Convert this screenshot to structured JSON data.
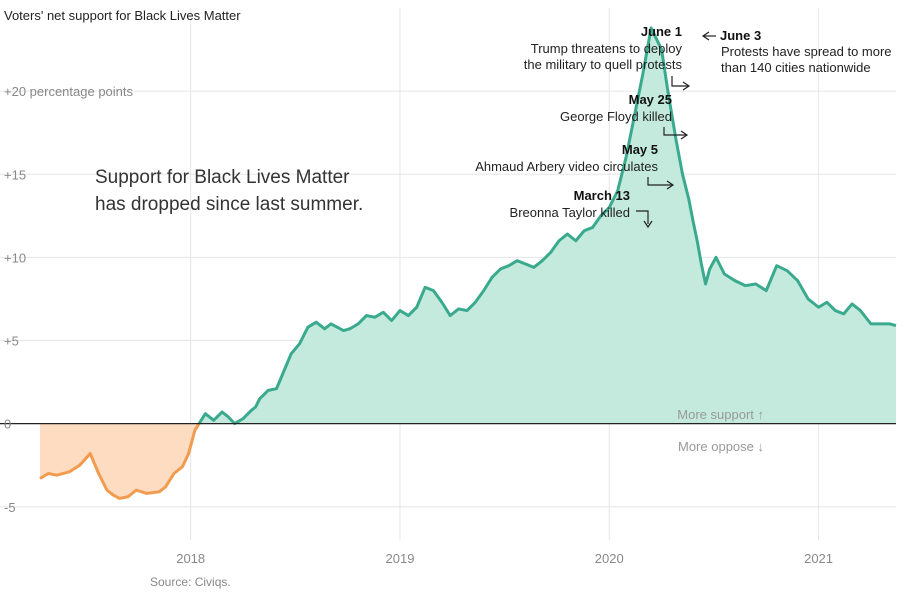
{
  "chart_data": {
    "type": "area",
    "title": "Voters' net support for Black Lives Matter",
    "headline_lines": [
      "Support for Black Lives Matter",
      "has dropped since last summer."
    ],
    "source": "Source: Civiqs.",
    "more_support_label": "More support ↑",
    "more_oppose_label": "More oppose ↓",
    "y_ticks": [
      {
        "value": -5,
        "label": "-5"
      },
      {
        "value": 0,
        "label": "0"
      },
      {
        "value": 5,
        "label": "+5"
      },
      {
        "value": 10,
        "label": "+10"
      },
      {
        "value": 15,
        "label": "+15"
      },
      {
        "value": 20,
        "label": "+20 percentage points"
      }
    ],
    "x_ticks": [
      {
        "value": 2018,
        "label": "2018"
      },
      {
        "value": 2019,
        "label": "2019"
      },
      {
        "value": 2020,
        "label": "2020"
      },
      {
        "value": 2021,
        "label": "2021"
      }
    ],
    "xlim": [
      2017.28,
      2021.37
    ],
    "ylim": [
      -7,
      25
    ],
    "grid": true,
    "colors": {
      "positive_line": "#3aaa8e",
      "positive_fill": "#c3eadd",
      "negative_line": "#f29b4f",
      "negative_fill": "#fddcc2",
      "grid": "#e6e6e6",
      "baseline": "#222222"
    },
    "series": [
      {
        "x": [
          2017.28,
          2017.32,
          2017.36,
          2017.42,
          2017.47,
          2017.52,
          2017.56,
          2017.6,
          2017.63,
          2017.66,
          2017.7,
          2017.74,
          2017.79,
          2017.85,
          2017.88,
          2017.92,
          2017.96,
          2017.99,
          2018.02,
          2018.07,
          2018.11,
          2018.15,
          2018.18,
          2018.21,
          2018.25,
          2018.29,
          2018.31,
          2018.33,
          2018.37,
          2018.41,
          2018.45,
          2018.48,
          2018.52,
          2018.56,
          2018.6,
          2018.64,
          2018.67,
          2018.7,
          2018.73,
          2018.76,
          2018.8,
          2018.84,
          2018.88,
          2018.92,
          2018.96,
          2019.0,
          2019.04,
          2019.08,
          2019.12,
          2019.16,
          2019.2,
          2019.24,
          2019.28,
          2019.32,
          2019.36,
          2019.4,
          2019.44,
          2019.48,
          2019.52,
          2019.56,
          2019.6,
          2019.64,
          2019.68,
          2019.72,
          2019.76,
          2019.8,
          2019.84,
          2019.88,
          2019.92,
          2019.96,
          2020.0,
          2020.04,
          2020.08,
          2020.12,
          2020.16,
          2020.2,
          2020.25,
          2020.28,
          2020.32,
          2020.35,
          2020.38,
          2020.4,
          2020.42,
          2020.44,
          2020.46,
          2020.48,
          2020.51,
          2020.55,
          2020.6,
          2020.65,
          2020.7,
          2020.75,
          2020.8,
          2020.85,
          2020.9,
          2020.95,
          2021.0,
          2021.04,
          2021.08,
          2021.12,
          2021.16,
          2021.2,
          2021.25,
          2021.3,
          2021.34,
          2021.37
        ],
        "y": [
          -3.3,
          -3.0,
          -3.1,
          -2.9,
          -2.5,
          -1.8,
          -3.0,
          -4.0,
          -4.3,
          -4.5,
          -4.4,
          -4.0,
          -4.2,
          -4.1,
          -3.8,
          -3.0,
          -2.6,
          -1.8,
          -0.4,
          0.6,
          0.2,
          0.7,
          0.4,
          0.0,
          0.3,
          0.8,
          1.0,
          1.5,
          2.0,
          2.1,
          3.3,
          4.2,
          4.8,
          5.8,
          6.1,
          5.7,
          6.0,
          5.8,
          5.6,
          5.7,
          6.0,
          6.5,
          6.4,
          6.7,
          6.2,
          6.8,
          6.5,
          7.0,
          8.2,
          8.0,
          7.3,
          6.5,
          6.9,
          6.8,
          7.3,
          8.0,
          8.8,
          9.3,
          9.5,
          9.8,
          9.6,
          9.4,
          9.8,
          10.3,
          11.0,
          11.4,
          11.0,
          11.6,
          11.8,
          12.5,
          13.0,
          14.0,
          16.0,
          18.5,
          21.0,
          23.8,
          22.5,
          20.0,
          17.0,
          15.0,
          13.5,
          12.2,
          11.0,
          9.6,
          8.4,
          9.3,
          10.0,
          9.0,
          8.6,
          8.3,
          8.4,
          8.0,
          9.5,
          9.2,
          8.6,
          7.5,
          7.0,
          7.3,
          6.8,
          6.6,
          7.2,
          6.8,
          6.0,
          6.0,
          6.0,
          5.9
        ]
      }
    ],
    "annotations": [
      {
        "date": "March 13",
        "lines": [
          "Breonna Taylor killed"
        ],
        "x": 2020.2,
        "y": 11.8
      },
      {
        "date": "May 5",
        "lines": [
          "Ahmaud Arbery video circulates"
        ],
        "x": 2020.34,
        "y": 15.0
      },
      {
        "date": "May 25",
        "lines": [
          "George Floyd killed"
        ],
        "x": 2020.39,
        "y": 18.0
      },
      {
        "date": "June 1",
        "lines": [
          "Trump threatens to deploy",
          "the military to quell protests"
        ],
        "x": 2020.41,
        "y": 21.5
      },
      {
        "date": "June 3",
        "lines": [
          "Protests have spread to more",
          "than 140 cities nationwide"
        ],
        "x": 2020.45,
        "y": 23.8
      }
    ]
  }
}
